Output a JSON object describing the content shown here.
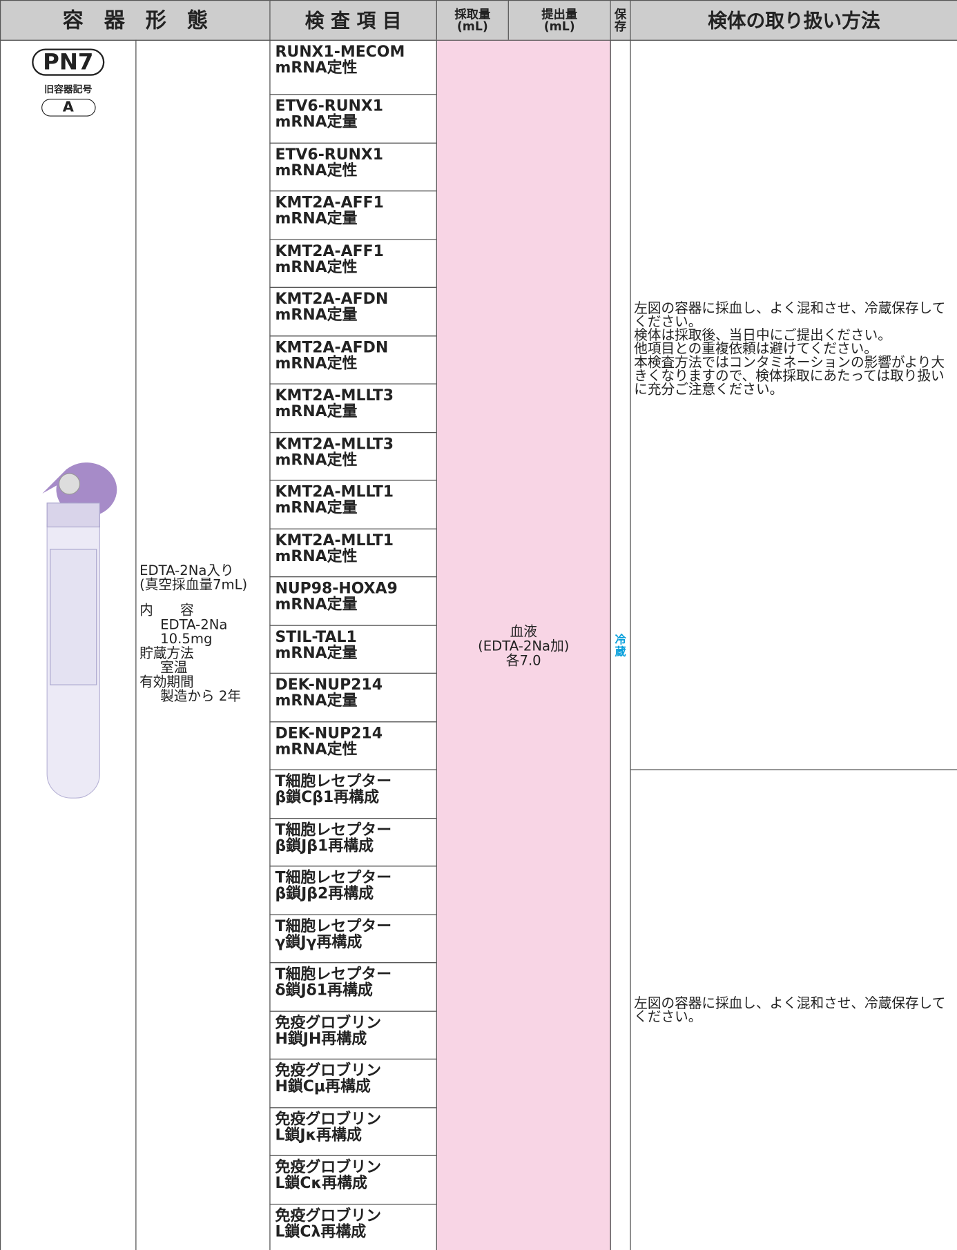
{
  "header": [
    {
      "lines": [
        "容　器　形　態"
      ]
    },
    {
      "lines": [
        "検 査 項 目"
      ]
    },
    {
      "lines": [
        "採取量",
        "(mL)"
      ]
    },
    {
      "lines": [
        "提出量",
        "(mL)"
      ]
    },
    {
      "lines": [
        "保",
        "存"
      ]
    },
    {
      "lines": [
        "検体の取り扱い方法"
      ]
    }
  ],
  "container": {
    "code": "PN7",
    "old_label": "旧容器記号",
    "old_code": "A",
    "intro": [
      "EDTA-2Na入り",
      "(真空採血量7mL)"
    ],
    "specs": [
      {
        "label": "内　　容",
        "value": [
          "EDTA-2Na",
          "10.5mg"
        ]
      },
      {
        "label": "貯蔵方法",
        "value": [
          "室温"
        ]
      },
      {
        "label": "有効期間",
        "value": [
          "製造から 2年"
        ]
      }
    ]
  },
  "tests": [
    [
      "RUNX1-MECOM",
      "mRNA定性"
    ],
    [
      "ETV6-RUNX1",
      "mRNA定量"
    ],
    [
      "ETV6-RUNX1",
      "mRNA定性"
    ],
    [
      "KMT2A-AFF1",
      "mRNA定量"
    ],
    [
      "KMT2A-AFF1",
      "mRNA定性"
    ],
    [
      "KMT2A-AFDN",
      "mRNA定量"
    ],
    [
      "KMT2A-AFDN",
      "mRNA定性"
    ],
    [
      "KMT2A-MLLT3",
      "mRNA定量"
    ],
    [
      "KMT2A-MLLT3",
      "mRNA定性"
    ],
    [
      "KMT2A-MLLT1",
      "mRNA定量"
    ],
    [
      "KMT2A-MLLT1",
      "mRNA定性"
    ],
    [
      "NUP98-HOXA9",
      "mRNA定量"
    ],
    [
      "STIL-TAL1",
      "mRNA定量"
    ],
    [
      "DEK-NUP214",
      "mRNA定量"
    ],
    [
      "DEK-NUP214",
      "mRNA定性"
    ],
    [
      "T細胞レセプター",
      "β鎖Cβ1再構成"
    ],
    [
      "T細胞レセプター",
      "β鎖Jβ1再構成"
    ],
    [
      "T細胞レセプター",
      "β鎖Jβ2再構成"
    ],
    [
      "T細胞レセプター",
      "γ鎖Jγ再構成"
    ],
    [
      "T細胞レセプター",
      "δ鎖Jδ1再構成"
    ],
    [
      "免疫グロブリン",
      "H鎖JH再構成"
    ],
    [
      "免疫グロブリン",
      "H鎖Cμ再構成"
    ],
    [
      "免疫グロブリン",
      "L鎖Jκ再構成"
    ],
    [
      "免疫グロブリン",
      "L鎖Cκ再構成"
    ],
    [
      "免疫グロブリン",
      "L鎖Cλ再構成"
    ]
  ],
  "specimen": [
    "血液",
    "(EDTA-2Na加)",
    "各7.0"
  ],
  "storage": [
    "冷",
    "蔵"
  ],
  "handling": [
    [
      "左図の容器に採血し、よく混和させ、冷蔵保存してください。",
      "検体は採取後、当日中にご提出ください。",
      "他項目との重複依頼は避けてください。",
      "本検査方法ではコンタミネーションの影響がより大きくなりますので、検体採取にあたっては取り扱いに充分ご注意ください。"
    ],
    [
      "左図の容器に採血し、よく混和させ、冷蔵保存してください。"
    ]
  ]
}
